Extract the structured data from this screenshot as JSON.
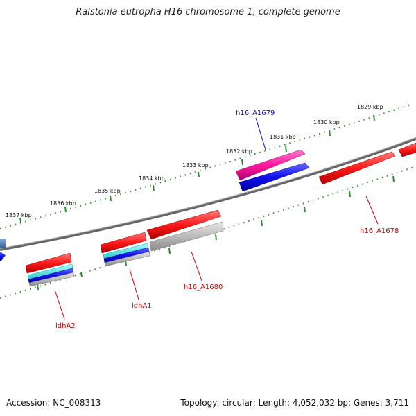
{
  "title": "Ralstonia eutropha H16 chromosome 1, complete genome",
  "footer": {
    "accession": "Accession: NC_008313",
    "summary": "Topology: circular; Length: 4,052,032 bp; Genes: 3,711"
  },
  "colors": {
    "backbone": "#777777",
    "ticks": "#2e8b2e",
    "feature_red": "#ff1a1a",
    "feature_magenta": "#ff1aa0",
    "feature_blue": "#1010ee",
    "feature_cyan": "#22dddd",
    "feature_gray": "#bbbbbb",
    "label_blue": "#0000cc",
    "label_red": "#cc0000"
  },
  "ruler": [
    {
      "label": "1829 kbp"
    },
    {
      "label": "1830 kbp"
    },
    {
      "label": "1831 kbp"
    },
    {
      "label": "1832 kbp"
    },
    {
      "label": "1833 kbp"
    },
    {
      "label": "1834 kbp"
    },
    {
      "label": "1835 kbp"
    },
    {
      "label": "1836 kbp"
    },
    {
      "label": "1837 kbp"
    }
  ],
  "genes": [
    {
      "label": "h16_A1679",
      "color": "label_blue"
    },
    {
      "label": "h16_A1678",
      "color": "label_red"
    },
    {
      "label": "h16_A1680",
      "color": "label_red"
    },
    {
      "label": "ldhA1",
      "color": "label_red"
    },
    {
      "label": "ldhA2",
      "color": "label_red"
    }
  ]
}
